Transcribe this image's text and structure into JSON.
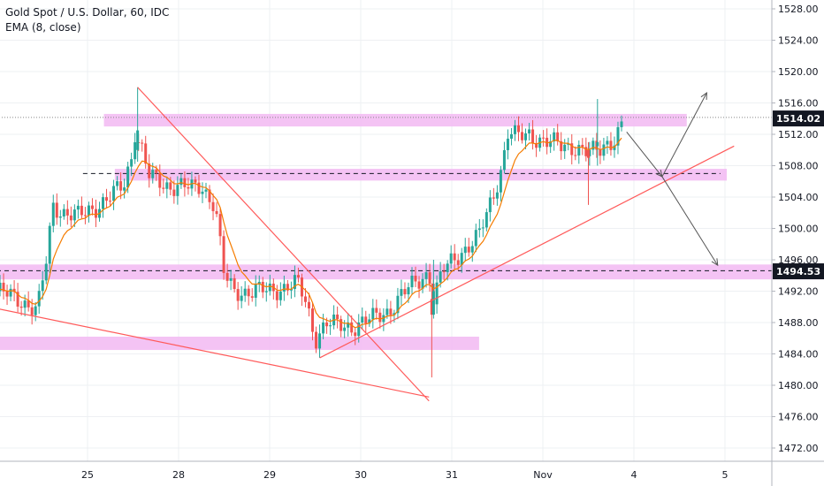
{
  "legend": {
    "title": "Gold Spot / U.S. Dollar, 60, IDC",
    "indicator": "EMA (8, close)"
  },
  "chart_data": {
    "type": "candlestick",
    "title": "Gold Spot / U.S. Dollar, 60, IDC",
    "indicator": "EMA (8, close)",
    "y_axis": {
      "position": "right",
      "range": [
        1469,
        1530
      ],
      "ticks": [
        "1528.00",
        "1524.00",
        "1520.00",
        "1516.00",
        "1512.00",
        "1508.00",
        "1504.00",
        "1500.00",
        "1496.00",
        "1492.00",
        "1488.00",
        "1484.00",
        "1480.00",
        "1476.00",
        "1472.00"
      ]
    },
    "x_axis": {
      "range": [
        24.0,
        35.3
      ],
      "ticks": [
        {
          "pos": 25,
          "label": "25"
        },
        {
          "pos": 26,
          "label": "28"
        },
        {
          "pos": 27,
          "label": "29"
        },
        {
          "pos": 28,
          "label": "30"
        },
        {
          "pos": 29,
          "label": "31"
        },
        {
          "pos": 30,
          "label": "Nov"
        },
        {
          "pos": 31,
          "label": "4"
        },
        {
          "pos": 32,
          "label": "5"
        }
      ]
    },
    "price_labels": [
      {
        "value": 1514.02,
        "label": "1514.02"
      },
      {
        "value": 1494.53,
        "label": "1494.53"
      }
    ],
    "grid": true,
    "colors": {
      "up": "#26a69a",
      "down": "#ef5350",
      "ema": "#f57c00",
      "zone": "#f2b8f2",
      "trendline": "#ff5a5a",
      "arrow": "#555555",
      "label_bg": "#131722",
      "grid": "#eef0f3"
    },
    "closes": [
      [
        24.0,
        1492.0
      ],
      [
        24.25,
        1491.0
      ],
      [
        24.45,
        1489.5
      ],
      [
        24.55,
        1496.0
      ],
      [
        24.62,
        1503.0
      ],
      [
        24.75,
        1502.0
      ],
      [
        24.9,
        1501.5
      ],
      [
        25.05,
        1502.5
      ],
      [
        25.25,
        1504.0
      ],
      [
        25.4,
        1505.5
      ],
      [
        25.48,
        1509.0
      ],
      [
        25.52,
        1512.5
      ],
      [
        25.6,
        1510.0
      ],
      [
        25.68,
        1506.5
      ],
      [
        25.85,
        1505.5
      ],
      [
        26.0,
        1505.5
      ],
      [
        26.15,
        1505.0
      ],
      [
        26.25,
        1505.5
      ],
      [
        26.4,
        1503.0
      ],
      [
        26.5,
        1494.0
      ],
      [
        26.6,
        1492.0
      ],
      [
        26.75,
        1492.0
      ],
      [
        26.9,
        1492.0
      ],
      [
        27.0,
        1492.0
      ],
      [
        27.15,
        1492.5
      ],
      [
        27.3,
        1493.0
      ],
      [
        27.4,
        1490.5
      ],
      [
        27.5,
        1486.0
      ],
      [
        27.62,
        1488.0
      ],
      [
        27.75,
        1487.5
      ],
      [
        27.9,
        1487.5
      ],
      [
        28.0,
        1488.0
      ],
      [
        28.15,
        1488.5
      ],
      [
        28.3,
        1489.5
      ],
      [
        28.45,
        1491.5
      ],
      [
        28.6,
        1493.0
      ],
      [
        28.75,
        1494.5
      ],
      [
        28.8,
        1491.0
      ],
      [
        28.9,
        1494.5
      ],
      [
        29.1,
        1497.0
      ],
      [
        29.3,
        1499.0
      ],
      [
        29.45,
        1504.0
      ],
      [
        29.55,
        1508.0
      ],
      [
        29.62,
        1512.5
      ],
      [
        29.72,
        1511.5
      ],
      [
        29.85,
        1512.0
      ],
      [
        30.05,
        1511.0
      ],
      [
        30.2,
        1510.5
      ],
      [
        30.35,
        1510.5
      ],
      [
        30.5,
        1509.5
      ],
      [
        30.62,
        1510.0
      ],
      [
        30.7,
        1511.0
      ],
      [
        30.8,
        1511.5
      ],
      [
        30.88,
        1513.5
      ]
    ],
    "zones": [
      {
        "x0": 25.18,
        "x1": 31.58,
        "y0": 1513.0,
        "y1": 1514.6
      },
      {
        "x0": 25.3,
        "x1": 32.02,
        "y0": 1506.1,
        "y1": 1507.6
      },
      {
        "x0": 24.0,
        "x1": 35.3,
        "y0": 1493.5,
        "y1": 1495.4
      },
      {
        "x0": 24.0,
        "x1": 29.3,
        "y0": 1484.5,
        "y1": 1486.2
      }
    ],
    "dashed_levels": [
      {
        "x0": 24.95,
        "x1": 31.95,
        "y": 1507.0,
        "color": "#131722"
      },
      {
        "x0": 24.0,
        "x1": 35.3,
        "y": 1494.6,
        "color": "#131722"
      }
    ],
    "dotted_levels": [
      {
        "x0": 24.0,
        "x1": 35.3,
        "y": 1514.15,
        "color": "#888888"
      }
    ],
    "trendlines": [
      {
        "x0": 25.55,
        "y0": 1518.0,
        "x1": 28.75,
        "y1": 1478.0
      },
      {
        "x0": 24.0,
        "y0": 1489.8,
        "x1": 28.75,
        "y1": 1478.5
      },
      {
        "x0": 27.55,
        "y0": 1483.5,
        "x1": 32.1,
        "y1": 1510.5
      }
    ],
    "arrows": [
      {
        "x0": 30.92,
        "y0": 1512.3,
        "x1": 31.31,
        "y1": 1506.6
      },
      {
        "x0": 31.31,
        "y0": 1506.6,
        "x1": 31.8,
        "y1": 1517.3
      },
      {
        "x0": 31.31,
        "y0": 1506.6,
        "x1": 31.92,
        "y1": 1495.3
      }
    ],
    "special_candles": [
      {
        "x": 28.78,
        "open": 1491.0,
        "high": 1493.0,
        "low": 1481.0,
        "close": 1489.0
      },
      {
        "x": 28.8,
        "open": 1489.0,
        "high": 1496.0,
        "low": 1488.5,
        "close": 1492.0
      },
      {
        "x": 30.5,
        "open": 1510.0,
        "high": 1511.0,
        "low": 1503.0,
        "close": 1509.0
      },
      {
        "x": 30.6,
        "open": 1510.5,
        "high": 1516.5,
        "low": 1508.0,
        "close": 1511.0
      },
      {
        "x": 25.55,
        "open": 1510.0,
        "high": 1518.0,
        "low": 1508.5,
        "close": 1512.5
      }
    ]
  }
}
